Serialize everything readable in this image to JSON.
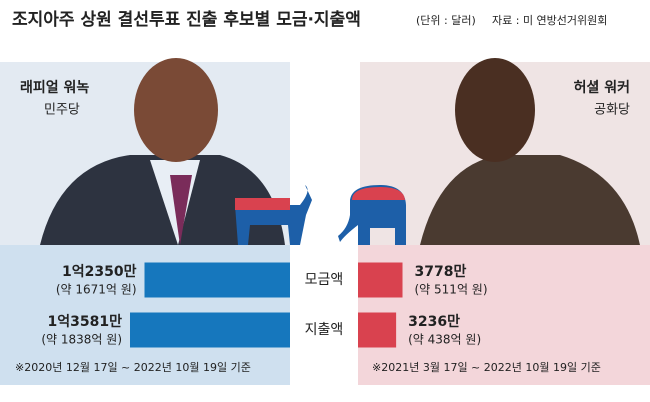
{
  "chart_data": {
    "type": "butterfly",
    "title": "조지아주 상원 결선투표 진출 후보별 모금·지출액",
    "unit": "(단위 : 달러)",
    "source": "자료 : 미 연방선거위원회",
    "categories": [
      "모금액",
      "지출액"
    ],
    "series": [
      {
        "name": "래피얼 워녹",
        "party": "민주당",
        "color": "#1677bd",
        "values": [
          12350,
          13581
        ],
        "value_labels": [
          "1억2350만",
          "1억3581만"
        ],
        "won_labels": [
          "(약 1671억 원)",
          "(약 1838억 원)"
        ],
        "period": "※2020년 12월 17일 ~ 2022년 10월 19일 기준"
      },
      {
        "name": "허셜 워커",
        "party": "공화당",
        "color": "#d9424f",
        "values": [
          3778,
          3236
        ],
        "value_labels": [
          "3778만",
          "3236만"
        ],
        "won_labels": [
          "(약 511억 원)",
          "(약 438억 원)"
        ],
        "period": "※2021년 3월 17일 ~ 2022년 10월 19일 기준"
      }
    ]
  }
}
